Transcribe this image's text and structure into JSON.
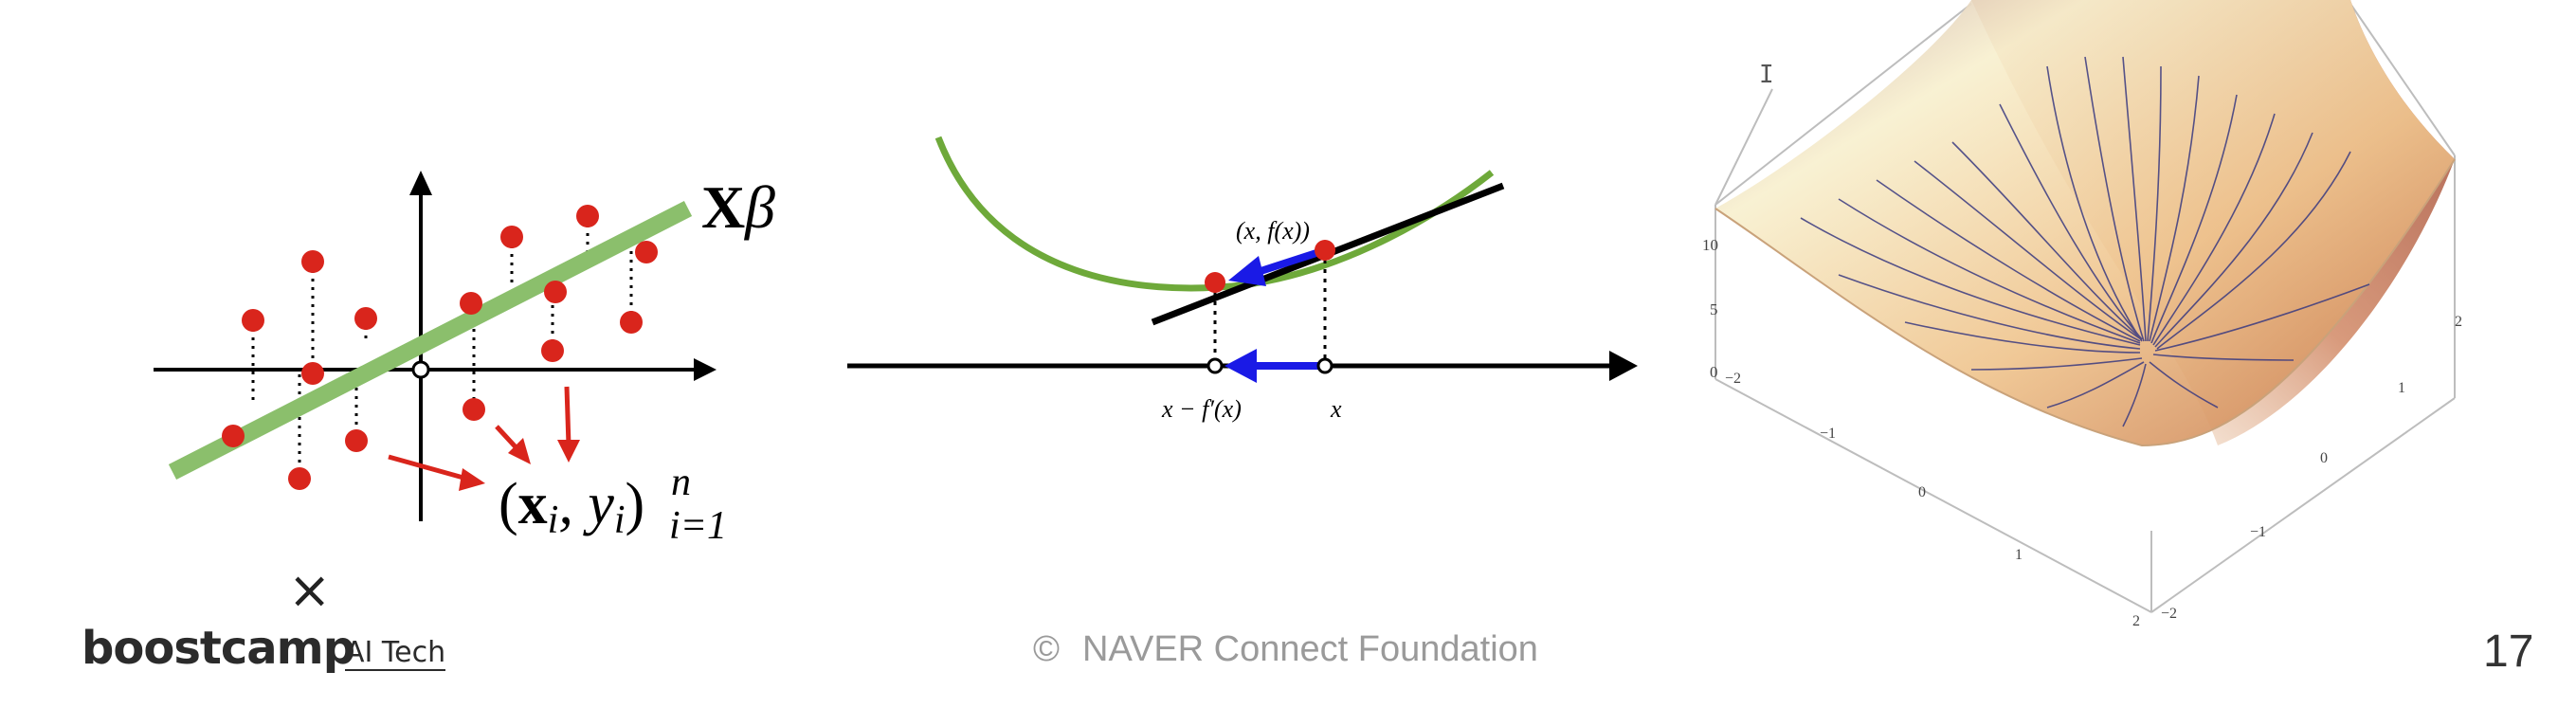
{
  "diagram1": {
    "line_label_main": "X",
    "line_label_beta": "β",
    "points_label_open": "(",
    "points_label_x": "x",
    "points_label_i1": "i",
    "points_label_sep": ", y",
    "points_label_i2": "i",
    "points_label_close": ")",
    "points_label_sup": "n",
    "points_label_sub": "i=1"
  },
  "diagram2": {
    "point_label": "(x, f(x))",
    "axis_label_left": "x − f′(x)",
    "axis_label_right": "x"
  },
  "diagram3": {
    "z_ticks": [
      "10",
      "5",
      "0"
    ],
    "x_ticks": [
      "−2",
      "−1",
      "0",
      "1",
      "2"
    ],
    "y_ticks": [
      "2",
      "1",
      "0",
      "−1",
      "−2"
    ]
  },
  "footer": {
    "cross_symbol": "×",
    "brand": "boostcamp",
    "brand_sub": "AI Tech",
    "copyright_symbol": "©",
    "copyright_text": "NAVER Connect Foundation",
    "page_number": "17"
  },
  "cursor_glyph": "I",
  "colors": {
    "green_line": "#8bbf6c",
    "red_point": "#d9251c",
    "blue_arrow": "#1a1ae6",
    "curve_green": "#6ea93a",
    "surface_light": "#f8f0cf",
    "surface_dark": "#b4664e"
  }
}
